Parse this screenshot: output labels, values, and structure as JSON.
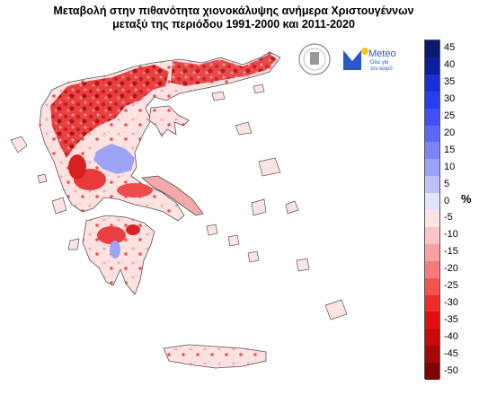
{
  "title": {
    "line1": "Μεταβολή στην πιθανότητα χιονοκάλυψης ανήμερα Χριστουγέννων",
    "line2": "μεταξύ της περιόδου 1991-2000 και 2011-2020"
  },
  "logos": {
    "meteo_name": "Meteo",
    "meteo_tagline1": "Όλα για",
    "meteo_tagline2": "τον καιρό",
    "meteo_color": "#2a57c8",
    "meteo_accent": "#f5c518",
    "seal_icon": "university-seal-icon"
  },
  "legend": {
    "unit": "%",
    "labels": [
      "45",
      "40",
      "35",
      "30",
      "25",
      "20",
      "15",
      "10",
      "5",
      "0",
      "-5",
      "-10",
      "-15",
      "-20",
      "-25",
      "-30",
      "-35",
      "-40",
      "-45",
      "-50"
    ],
    "colors": [
      "#0a1a6e",
      "#0b1fa0",
      "#1a2fd6",
      "#2a3cf0",
      "#4450f5",
      "#5c68f7",
      "#7a84f8",
      "#9aa2fa",
      "#bcc1fb",
      "#e2e4fd",
      "#fde4e4",
      "#fcc4c4",
      "#f9a0a0",
      "#f67a7a",
      "#f25252",
      "#ee2c2c",
      "#e01010",
      "#c80a0a",
      "#a50808",
      "#7e0404"
    ]
  }
}
